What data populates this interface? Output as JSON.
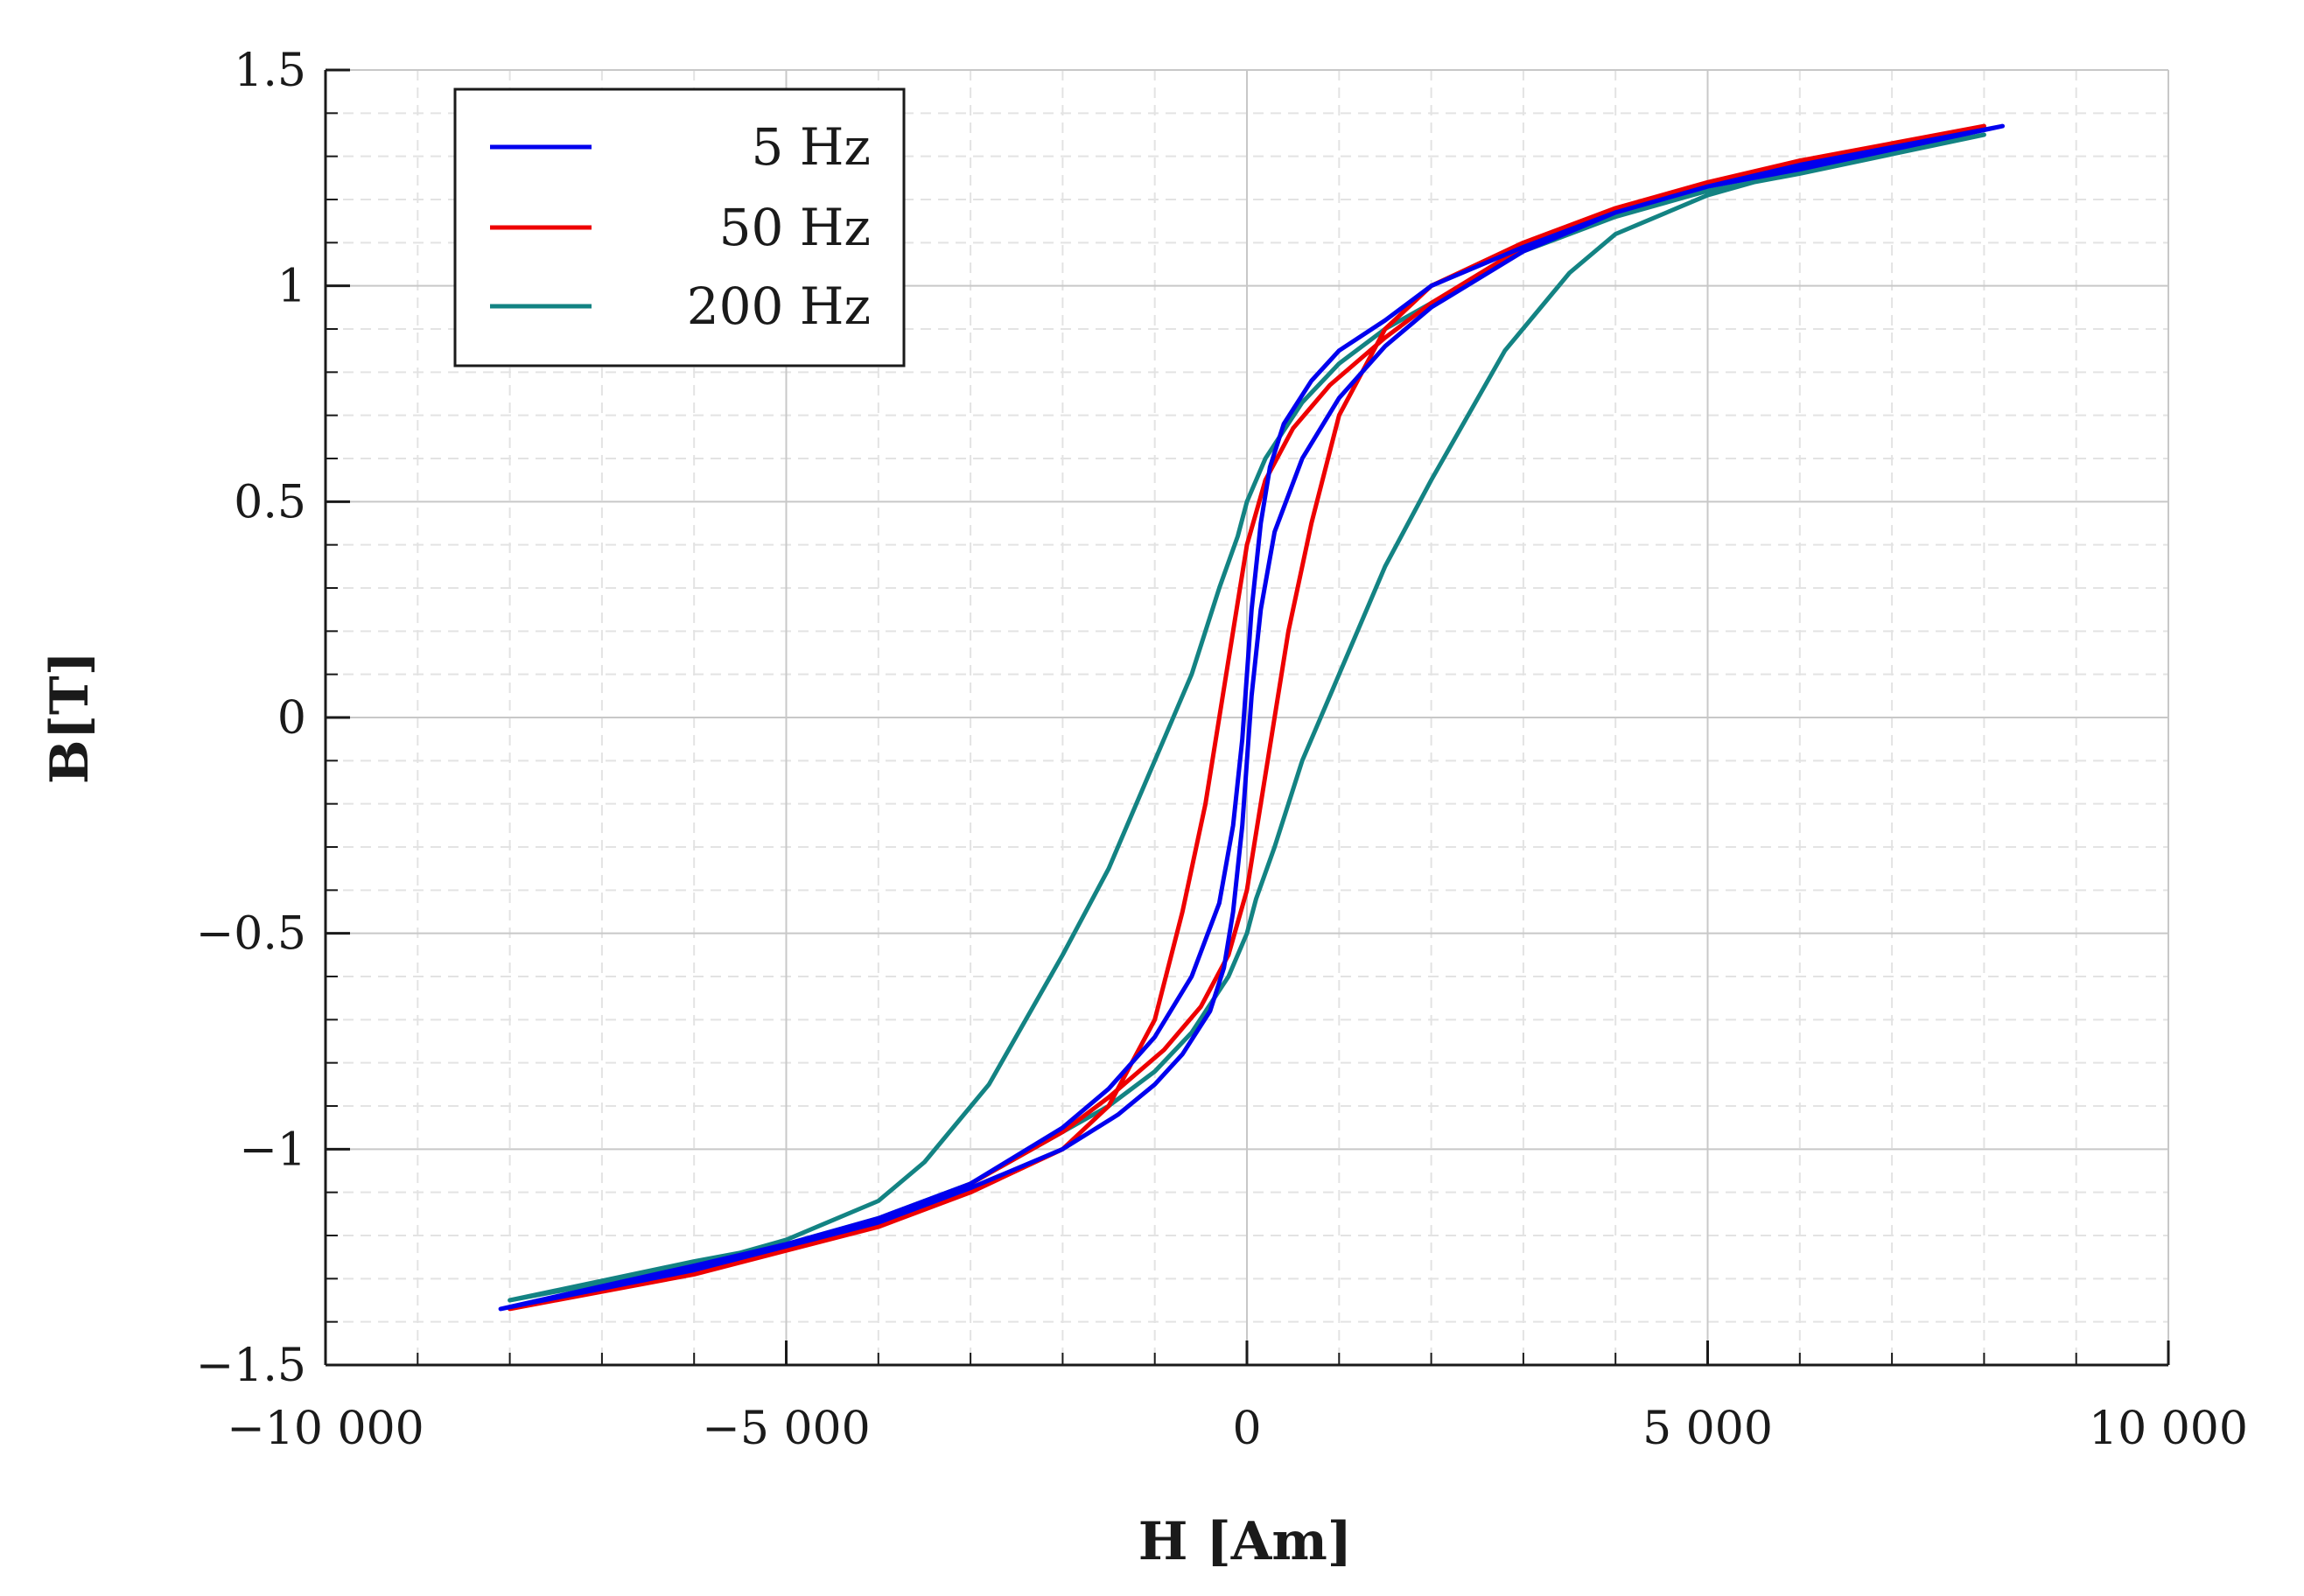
{
  "chart_data": {
    "type": "line",
    "title": "",
    "xlabel": "H [Am]",
    "ylabel": "B[T]",
    "xlim": [
      -10000,
      10000
    ],
    "ylim": [
      -1.5,
      1.5
    ],
    "x_ticks": [
      -10000,
      -5000,
      0,
      5000,
      10000
    ],
    "x_tick_labels": [
      "−10 000",
      "−5 000",
      "0",
      "5 000",
      "10 000"
    ],
    "y_ticks": [
      -1.5,
      -1,
      -0.5,
      0,
      0.5,
      1,
      1.5
    ],
    "y_tick_labels": [
      "−1.5",
      "−1",
      "−0.5",
      "0",
      "0.5",
      "1",
      "1.5"
    ],
    "grid": true,
    "legend_position": "top-left",
    "series": [
      {
        "name": "5 Hz",
        "color": "#0000ee",
        "x": [
          -8100,
          -6000,
          -4000,
          -3000,
          -2000,
          -1400,
          -1000,
          -700,
          -400,
          -250,
          -150,
          -50,
          0,
          50,
          150,
          300,
          600,
          1000,
          1500,
          2000,
          3000,
          4000,
          5000,
          6000,
          8200,
          6000,
          5000,
          4000,
          3000,
          2000,
          1500,
          1000,
          700,
          400,
          250,
          150,
          50,
          0,
          -50,
          -150,
          -300,
          -600,
          -1000,
          -1500,
          -2000,
          -3000,
          -4000,
          -5000,
          -6000,
          -8100
        ],
        "y": [
          -1.37,
          -1.28,
          -1.17,
          -1.09,
          -1.0,
          -0.92,
          -0.85,
          -0.78,
          -0.68,
          -0.58,
          -0.45,
          -0.25,
          -0.1,
          0.05,
          0.25,
          0.43,
          0.6,
          0.74,
          0.86,
          0.95,
          1.08,
          1.17,
          1.23,
          1.27,
          1.37,
          1.28,
          1.23,
          1.17,
          1.09,
          1.0,
          0.92,
          0.85,
          0.78,
          0.68,
          0.58,
          0.45,
          0.25,
          0.1,
          -0.05,
          -0.25,
          -0.43,
          -0.6,
          -0.74,
          -0.86,
          -0.95,
          -1.08,
          -1.16,
          -1.22,
          -1.27,
          -1.37
        ]
      },
      {
        "name": "50 Hz",
        "color": "#ee0000",
        "x": [
          -8000,
          -6000,
          -4000,
          -3000,
          -2000,
          -1500,
          -1000,
          -700,
          -450,
          -300,
          -150,
          0,
          200,
          500,
          900,
          1500,
          2000,
          3000,
          4000,
          5000,
          6000,
          8000,
          6000,
          5000,
          4000,
          3000,
          2000,
          1500,
          1000,
          700,
          450,
          300,
          150,
          0,
          -200,
          -500,
          -900,
          -1500,
          -2000,
          -3000,
          -4000,
          -5000,
          -6000,
          -8000
        ],
        "y": [
          -1.37,
          -1.29,
          -1.18,
          -1.1,
          -1.0,
          -0.9,
          -0.7,
          -0.45,
          -0.2,
          0.0,
          0.2,
          0.4,
          0.55,
          0.67,
          0.77,
          0.88,
          0.96,
          1.09,
          1.18,
          1.24,
          1.28,
          1.37,
          1.29,
          1.24,
          1.18,
          1.1,
          1.0,
          0.9,
          0.7,
          0.45,
          0.2,
          0.0,
          -0.2,
          -0.4,
          -0.55,
          -0.67,
          -0.77,
          -0.88,
          -0.96,
          -1.08,
          -1.17,
          -1.23,
          -1.28,
          -1.37
        ]
      },
      {
        "name": "200 Hz",
        "color": "#138383",
        "x": [
          -8000,
          -6000,
          -5000,
          -4000,
          -3500,
          -2800,
          -2000,
          -1500,
          -1000,
          -600,
          -300,
          -100,
          0,
          200,
          600,
          1000,
          1500,
          2000,
          3000,
          4000,
          5000,
          6000,
          8000,
          6000,
          5000,
          4000,
          3500,
          2800,
          2000,
          1500,
          1000,
          600,
          300,
          100,
          0,
          -200,
          -600,
          -1000,
          -1500,
          -2000,
          -3000,
          -4000,
          -5000,
          -6000,
          -8000
        ],
        "y": [
          -1.35,
          -1.27,
          -1.21,
          -1.12,
          -1.03,
          -0.85,
          -0.55,
          -0.35,
          -0.1,
          0.1,
          0.3,
          0.42,
          0.5,
          0.6,
          0.73,
          0.82,
          0.9,
          0.96,
          1.08,
          1.16,
          1.22,
          1.26,
          1.35,
          1.27,
          1.21,
          1.12,
          1.03,
          0.85,
          0.55,
          0.35,
          0.1,
          -0.1,
          -0.3,
          -0.42,
          -0.5,
          -0.6,
          -0.73,
          -0.82,
          -0.9,
          -0.96,
          -1.08,
          -1.16,
          -1.22,
          -1.26,
          -1.35
        ]
      }
    ]
  }
}
